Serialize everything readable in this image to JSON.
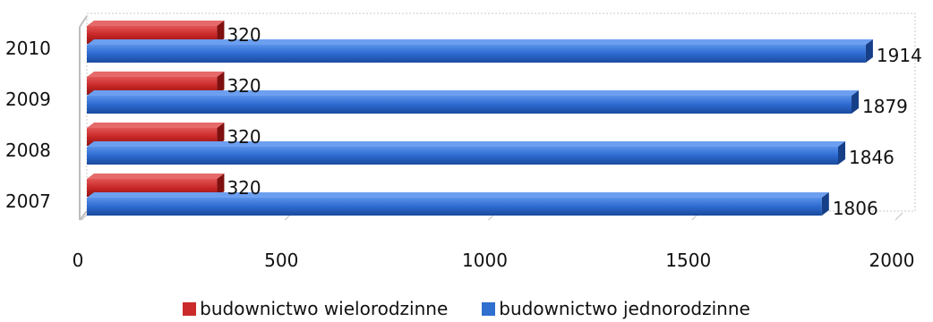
{
  "chart_data": {
    "type": "bar",
    "orientation": "horizontal",
    "title": "",
    "categories": [
      "2007",
      "2008",
      "2009",
      "2010"
    ],
    "series": [
      {
        "name": "budownictwo wielorodzinne",
        "color": "#cc2b2b",
        "values": [
          320,
          320,
          320,
          320
        ]
      },
      {
        "name": "budownictwo jednorodzinne",
        "color": "#2e6fd0",
        "values": [
          1806,
          1846,
          1879,
          1914
        ]
      }
    ],
    "xlim": [
      0,
      2000
    ],
    "xticks": [
      "0",
      "500",
      "1000",
      "1500",
      "2000"
    ],
    "grid": false,
    "legend_position": "bottom",
    "style": "3d"
  }
}
